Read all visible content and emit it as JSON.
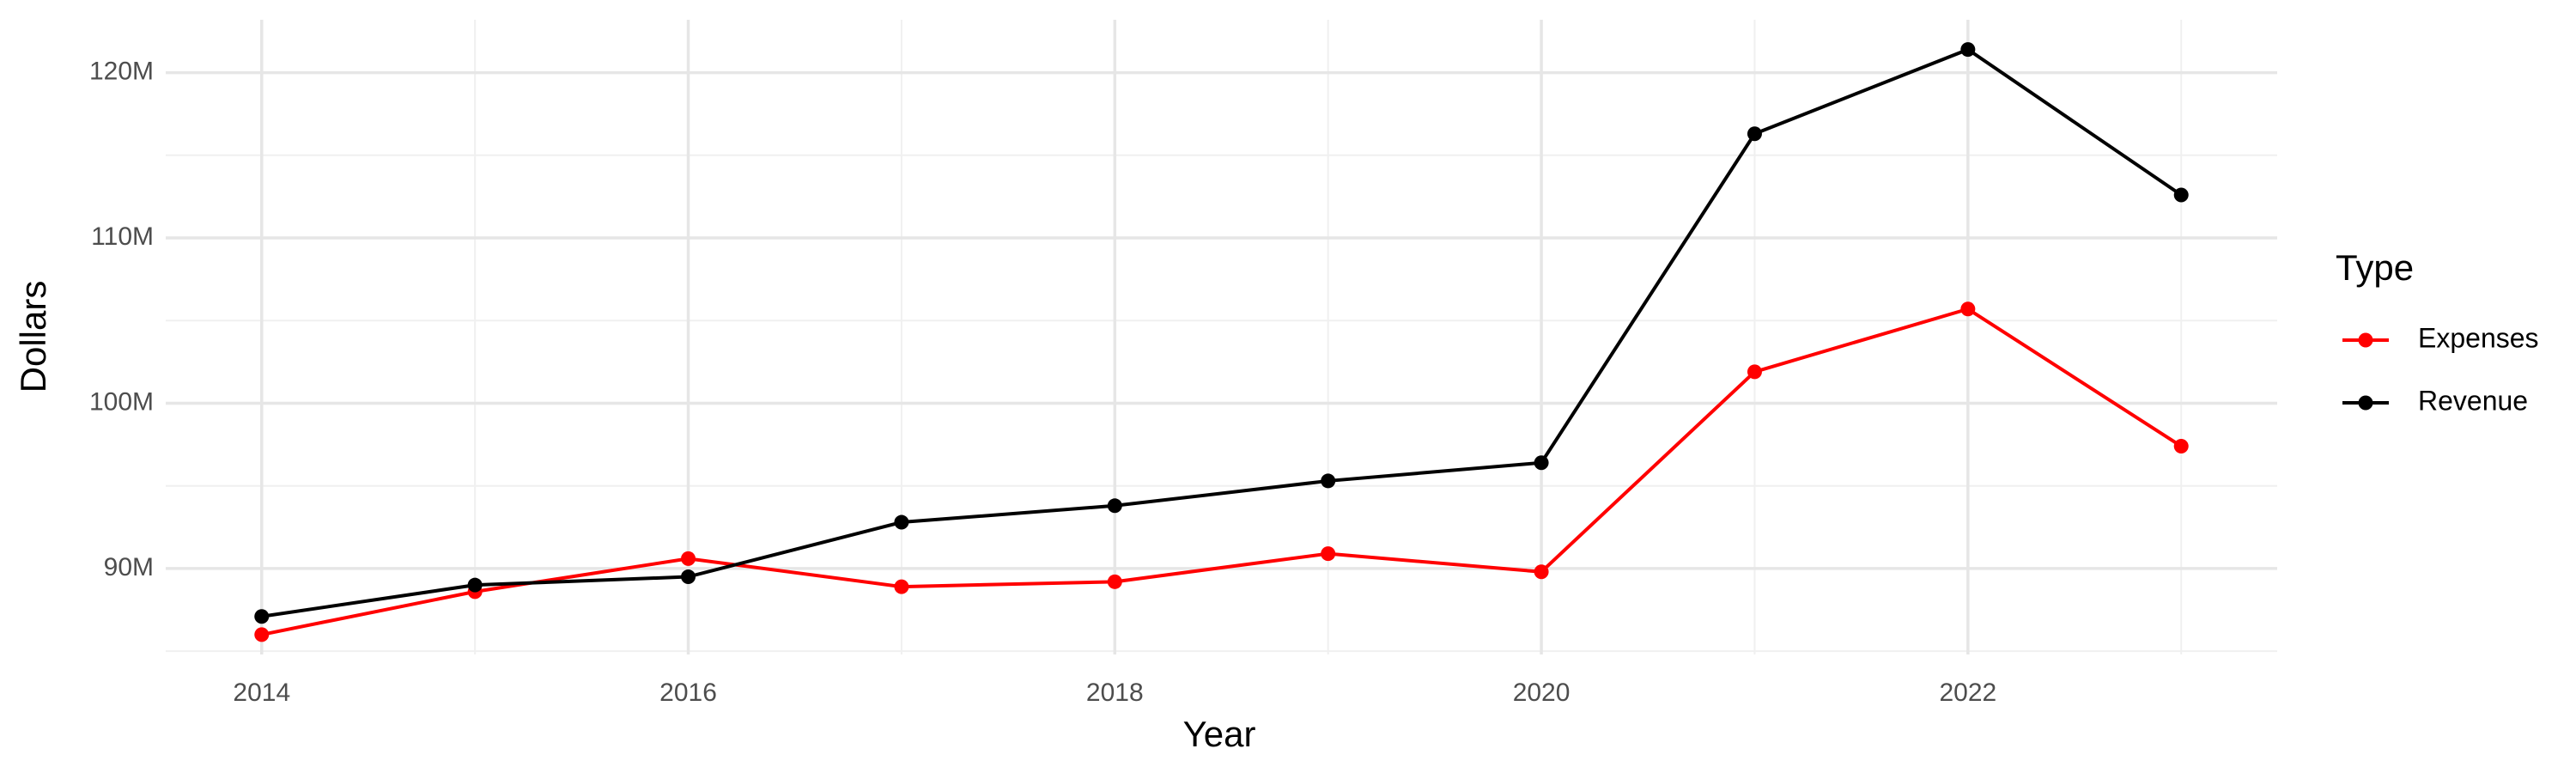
{
  "chart_data": {
    "type": "line",
    "x_label": "Year",
    "y_label": "Dollars",
    "legend_title": "Type",
    "x": [
      2014,
      2015,
      2016,
      2017,
      2018,
      2019,
      2020,
      2021,
      2022,
      2023
    ],
    "series": [
      {
        "name": "Expenses",
        "color": "#ff0000",
        "values": [
          86000000,
          88600000,
          90600000,
          88900000,
          89200000,
          90900000,
          89800000,
          101900000,
          105700000,
          97400000
        ]
      },
      {
        "name": "Revenue",
        "color": "#000000",
        "values": [
          87100000,
          89000000,
          89500000,
          92800000,
          93800000,
          95300000,
          96400000,
          116300000,
          121400000,
          112600000
        ]
      }
    ],
    "xlim": [
      2013.55,
      2023.45
    ],
    "xticks": [
      2014,
      2016,
      2018,
      2020,
      2022
    ],
    "xminor": [
      2015,
      2017,
      2019,
      2021,
      2023
    ],
    "ylim": [
      84800000,
      123200000
    ],
    "yticks": [
      {
        "value": 90000000,
        "label": "90M"
      },
      {
        "value": 100000000,
        "label": "100M"
      },
      {
        "value": 110000000,
        "label": "110M"
      },
      {
        "value": 120000000,
        "label": "120M"
      }
    ],
    "yminor": [
      85000000,
      95000000,
      105000000,
      115000000
    ],
    "grid": true,
    "legend": "right"
  }
}
